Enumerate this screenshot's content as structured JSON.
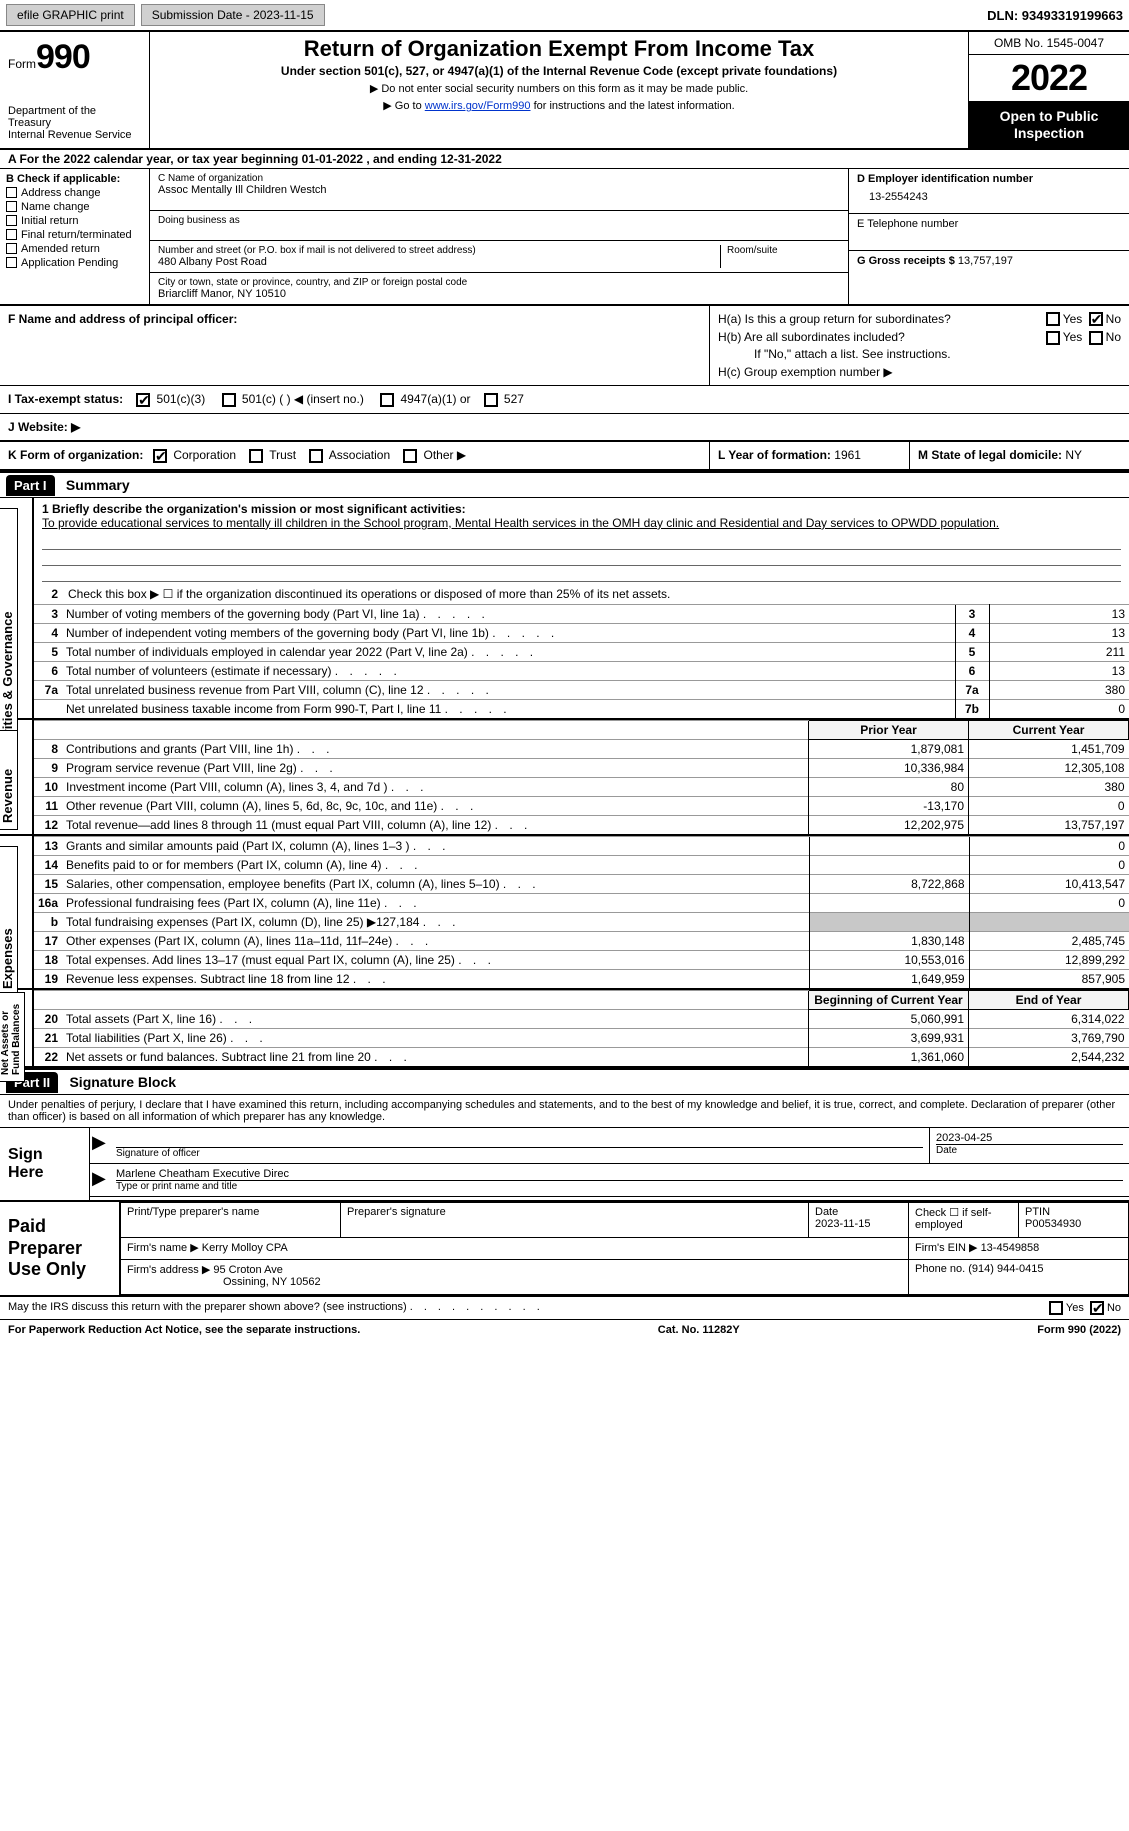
{
  "topbar": {
    "efile_btn": "efile GRAPHIC print",
    "sub_label": "Submission Date - 2023-11-15",
    "dln": "DLN: 93493319199663"
  },
  "header": {
    "form_word": "Form",
    "form_num": "990",
    "dept": "Department of the Treasury",
    "irs": "Internal Revenue Service",
    "title": "Return of Organization Exempt From Income Tax",
    "subtitle": "Under section 501(c), 527, or 4947(a)(1) of the Internal Revenue Code (except private foundations)",
    "instr1": "▶ Do not enter social security numbers on this form as it may be made public.",
    "instr2_pre": "▶ Go to ",
    "instr2_link": "www.irs.gov/Form990",
    "instr2_post": " for instructions and the latest information.",
    "omb": "OMB No. 1545-0047",
    "year": "2022",
    "open": "Open to Public Inspection"
  },
  "section_a": "A For the 2022 calendar year, or tax year beginning 01-01-2022   , and ending 12-31-2022",
  "col_b": {
    "title": "B Check if applicable:",
    "opts": [
      "Address change",
      "Name change",
      "Initial return",
      "Final return/terminated",
      "Amended return",
      "Application Pending"
    ]
  },
  "col_c": {
    "c_label": "C Name of organization",
    "org": "Assoc Mentally Ill Children Westch",
    "dba": "Doing business as",
    "street_lbl": "Number and street (or P.O. box if mail is not delivered to street address)",
    "room_lbl": "Room/suite",
    "street": "480 Albany Post Road",
    "city_lbl": "City or town, state or province, country, and ZIP or foreign postal code",
    "city": "Briarcliff Manor, NY  10510"
  },
  "col_d": {
    "d_lbl": "D Employer identification number",
    "ein": "13-2554243",
    "e_lbl": "E Telephone number",
    "g_lbl": "G Gross receipts $",
    "g_val": "13,757,197"
  },
  "row_f": {
    "f_lbl": "F Name and address of principal officer:",
    "ha": "H(a)  Is this a group return for subordinates?",
    "hb": "H(b)  Are all subordinates included?",
    "hb_note": "If \"No,\" attach a list. See instructions.",
    "hc": "H(c)  Group exemption number ▶"
  },
  "row_i": {
    "i_lbl": "I   Tax-exempt status:",
    "opts": [
      "501(c)(3)",
      "501(c) (  ) ◀ (insert no.)",
      "4947(a)(1) or",
      "527"
    ],
    "checked_idx": 0
  },
  "row_j": "J   Website: ▶",
  "row_k": {
    "k_lbl": "K Form of organization:",
    "opts": [
      "Corporation",
      "Trust",
      "Association",
      "Other ▶"
    ],
    "checked_idx": 0,
    "l_lbl": "L Year of formation:",
    "l_val": "1961",
    "m_lbl": "M State of legal domicile:",
    "m_val": "NY"
  },
  "part1": {
    "bar": "Part I",
    "title": "Summary",
    "mission_lbl": "1   Briefly describe the organization's mission or most significant activities:",
    "mission": "To provide educational services to mentally ill children in the School program, Mental Health services in the OMH day clinic and Residential and Day services to OPWDD population.",
    "line2": "Check this box ▶ ☐  if the organization discontinued its operations or disposed of more than 25% of its net assets.",
    "side_ag": "Activities & Governance",
    "side_rev": "Revenue",
    "side_exp": "Expenses",
    "side_na": "Net Assets or Fund Balances",
    "rows_ag": [
      {
        "n": "3",
        "d": "Number of voting members of the governing body (Part VI, line 1a)",
        "box": "3",
        "v": "13"
      },
      {
        "n": "4",
        "d": "Number of independent voting members of the governing body (Part VI, line 1b)",
        "box": "4",
        "v": "13"
      },
      {
        "n": "5",
        "d": "Total number of individuals employed in calendar year 2022 (Part V, line 2a)",
        "box": "5",
        "v": "211"
      },
      {
        "n": "6",
        "d": "Total number of volunteers (estimate if necessary)",
        "box": "6",
        "v": "13"
      },
      {
        "n": "7a",
        "d": "Total unrelated business revenue from Part VIII, column (C), line 12",
        "box": "7a",
        "v": "380"
      },
      {
        "n": "",
        "d": "Net unrelated business taxable income from Form 990-T, Part I, line 11",
        "box": "7b",
        "v": "0"
      }
    ],
    "hdr_prior": "Prior Year",
    "hdr_curr": "Current Year",
    "rows_rev": [
      {
        "n": "8",
        "d": "Contributions and grants (Part VIII, line 1h)",
        "p": "1,879,081",
        "c": "1,451,709"
      },
      {
        "n": "9",
        "d": "Program service revenue (Part VIII, line 2g)",
        "p": "10,336,984",
        "c": "12,305,108"
      },
      {
        "n": "10",
        "d": "Investment income (Part VIII, column (A), lines 3, 4, and 7d )",
        "p": "80",
        "c": "380"
      },
      {
        "n": "11",
        "d": "Other revenue (Part VIII, column (A), lines 5, 6d, 8c, 9c, 10c, and 11e)",
        "p": "-13,170",
        "c": "0"
      },
      {
        "n": "12",
        "d": "Total revenue—add lines 8 through 11 (must equal Part VIII, column (A), line 12)",
        "p": "12,202,975",
        "c": "13,757,197"
      }
    ],
    "rows_exp": [
      {
        "n": "13",
        "d": "Grants and similar amounts paid (Part IX, column (A), lines 1–3 )",
        "p": "",
        "c": "0"
      },
      {
        "n": "14",
        "d": "Benefits paid to or for members (Part IX, column (A), line 4)",
        "p": "",
        "c": "0"
      },
      {
        "n": "15",
        "d": "Salaries, other compensation, employee benefits (Part IX, column (A), lines 5–10)",
        "p": "8,722,868",
        "c": "10,413,547"
      },
      {
        "n": "16a",
        "d": "Professional fundraising fees (Part IX, column (A), line 11e)",
        "p": "",
        "c": "0"
      },
      {
        "n": "b",
        "d": "Total fundraising expenses (Part IX, column (D), line 25) ▶127,184",
        "p": "GRAY",
        "c": "GRAY"
      },
      {
        "n": "17",
        "d": "Other expenses (Part IX, column (A), lines 11a–11d, 11f–24e)",
        "p": "1,830,148",
        "c": "2,485,745"
      },
      {
        "n": "18",
        "d": "Total expenses. Add lines 13–17 (must equal Part IX, column (A), line 25)",
        "p": "10,553,016",
        "c": "12,899,292"
      },
      {
        "n": "19",
        "d": "Revenue less expenses. Subtract line 18 from line 12",
        "p": "1,649,959",
        "c": "857,905"
      }
    ],
    "hdr_begin": "Beginning of Current Year",
    "hdr_end": "End of Year",
    "rows_na": [
      {
        "n": "20",
        "d": "Total assets (Part X, line 16)",
        "p": "5,060,991",
        "c": "6,314,022"
      },
      {
        "n": "21",
        "d": "Total liabilities (Part X, line 26)",
        "p": "3,699,931",
        "c": "3,769,790"
      },
      {
        "n": "22",
        "d": "Net assets or fund balances. Subtract line 21 from line 20",
        "p": "1,361,060",
        "c": "2,544,232"
      }
    ]
  },
  "part2": {
    "bar": "Part II",
    "title": "Signature Block",
    "intro": "Under penalties of perjury, I declare that I have examined this return, including accompanying schedules and statements, and to the best of my knowledge and belief, it is true, correct, and complete. Declaration of preparer (other than officer) is based on all information of which preparer has any knowledge.",
    "sign_here": "Sign Here",
    "sig_officer": "Signature of officer",
    "sig_date": "2023-04-25",
    "date_lbl": "Date",
    "typed_name": "Marlene Cheatham  Executive Direc",
    "typed_lbl": "Type or print name and title"
  },
  "prep": {
    "title": "Paid Preparer Use Only",
    "h_print": "Print/Type preparer's name",
    "h_sig": "Preparer's signature",
    "h_date": "Date",
    "date_val": "2023-11-15",
    "h_check": "Check ☐ if self-employed",
    "h_ptin": "PTIN",
    "ptin": "P00534930",
    "firm_name_lbl": "Firm's name    ▶",
    "firm_name": "Kerry Molloy CPA",
    "firm_ein_lbl": "Firm's EIN ▶",
    "firm_ein": "13-4549858",
    "firm_addr_lbl": "Firm's address ▶",
    "firm_addr1": "95 Croton Ave",
    "firm_addr2": "Ossining, NY  10562",
    "phone_lbl": "Phone no.",
    "phone": "(914) 944-0415"
  },
  "footer": {
    "discuss": "May the IRS discuss this return with the preparer shown above? (see instructions)",
    "pra": "For Paperwork Reduction Act Notice, see the separate instructions.",
    "cat": "Cat. No. 11282Y",
    "formref": "Form 990 (2022)"
  }
}
